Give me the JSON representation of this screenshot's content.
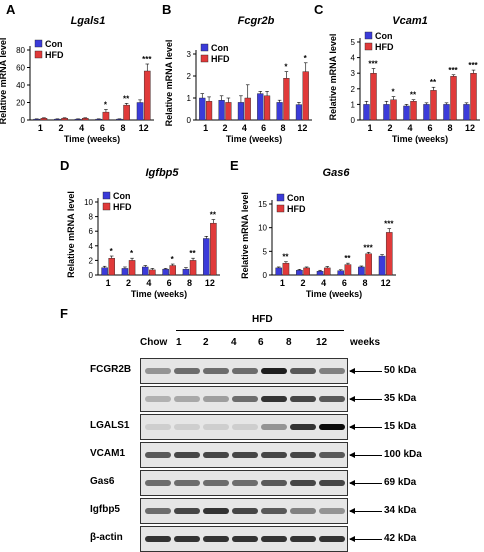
{
  "colors": {
    "con": "#3b3bd9",
    "hfd": "#e03a3a"
  },
  "panel_labels": [
    "A",
    "B",
    "C",
    "D",
    "E",
    "F"
  ],
  "chart_data": [
    {
      "id": "A",
      "type": "bar",
      "title": "Lgals1",
      "xlabel": "Time (weeks)",
      "ylabel": "Relative mRNA level",
      "categories": [
        "1",
        "2",
        "4",
        "6",
        "8",
        "12"
      ],
      "ylim": [
        0,
        80
      ],
      "yticks": [
        0,
        20,
        40,
        60,
        80
      ],
      "legend": "top-left",
      "series": [
        {
          "name": "Con",
          "values": [
            1,
            1,
            1,
            1,
            1,
            20
          ],
          "errors": [
            0.3,
            0.3,
            0.3,
            0.3,
            0.3,
            3
          ]
        },
        {
          "name": "HFD",
          "values": [
            2,
            2,
            2,
            9,
            17,
            56
          ],
          "errors": [
            0.5,
            0.5,
            0.5,
            3,
            2,
            8
          ]
        }
      ],
      "significance": [
        "",
        "",
        "",
        "*",
        "**",
        "***"
      ]
    },
    {
      "id": "B",
      "type": "bar",
      "title": "Fcgr2b",
      "xlabel": "Time (weeks)",
      "ylabel": "Relative mRNA level",
      "categories": [
        "1",
        "2",
        "4",
        "6",
        "8",
        "12"
      ],
      "ylim": [
        0,
        3
      ],
      "yticks": [
        0,
        1,
        2,
        3
      ],
      "legend": "top-left",
      "series": [
        {
          "name": "Con",
          "values": [
            1.0,
            0.9,
            0.8,
            1.2,
            0.8,
            0.7
          ],
          "errors": [
            0.2,
            0.2,
            0.3,
            0.1,
            0.1,
            0.1
          ]
        },
        {
          "name": "HFD",
          "values": [
            0.85,
            0.8,
            1.0,
            1.1,
            1.9,
            2.2
          ],
          "errors": [
            0.2,
            0.2,
            0.6,
            0.2,
            0.3,
            0.4
          ]
        }
      ],
      "significance": [
        "",
        "",
        "",
        "",
        "*",
        "*"
      ]
    },
    {
      "id": "C",
      "type": "bar",
      "title": "Vcam1",
      "xlabel": "Time (weeks)",
      "ylabel": "Relative mRNA level",
      "categories": [
        "1",
        "2",
        "4",
        "6",
        "8",
        "12"
      ],
      "ylim": [
        0,
        5
      ],
      "yticks": [
        0,
        1,
        2,
        3,
        4,
        5
      ],
      "legend": "top-left",
      "series": [
        {
          "name": "Con",
          "values": [
            1,
            1,
            0.9,
            1,
            1,
            1
          ],
          "errors": [
            0.2,
            0.2,
            0.1,
            0.1,
            0.1,
            0.1
          ]
        },
        {
          "name": "HFD",
          "values": [
            3,
            1.3,
            1.2,
            1.9,
            2.8,
            3
          ],
          "errors": [
            0.3,
            0.2,
            0.1,
            0.2,
            0.1,
            0.2
          ]
        }
      ],
      "significance": [
        "***",
        "*",
        "**",
        "**",
        "***",
        "***"
      ]
    },
    {
      "id": "D",
      "type": "bar",
      "title": "Igfbp5",
      "xlabel": "Time (weeks)",
      "ylabel": "Relative mRNA level",
      "categories": [
        "1",
        "2",
        "4",
        "6",
        "8",
        "12"
      ],
      "ylim": [
        0,
        10
      ],
      "yticks": [
        0,
        2,
        4,
        6,
        8,
        10
      ],
      "legend": "top-left",
      "series": [
        {
          "name": "Con",
          "values": [
            1,
            0.9,
            1.1,
            0.8,
            0.8,
            5
          ],
          "errors": [
            0.2,
            0.2,
            0.2,
            0.1,
            0.2,
            0.3
          ]
        },
        {
          "name": "HFD",
          "values": [
            2.3,
            2,
            0.7,
            1.3,
            2,
            7.1
          ],
          "errors": [
            0.3,
            0.3,
            0.2,
            0.2,
            0.3,
            0.5
          ]
        }
      ],
      "significance": [
        "*",
        "*",
        "",
        "*",
        "**",
        "**"
      ]
    },
    {
      "id": "E",
      "type": "bar",
      "title": "Gas6",
      "xlabel": "Time (weeks)",
      "ylabel": "Relative mRNA level",
      "categories": [
        "1",
        "2",
        "4",
        "6",
        "8",
        "12"
      ],
      "ylim": [
        0,
        15
      ],
      "yticks": [
        0,
        5,
        10,
        15
      ],
      "legend": "top-left",
      "series": [
        {
          "name": "Con",
          "values": [
            1.5,
            1,
            0.8,
            0.9,
            1.7,
            4
          ],
          "errors": [
            0.2,
            0.2,
            0.2,
            0.2,
            0.2,
            0.3
          ]
        },
        {
          "name": "HFD",
          "values": [
            2.5,
            1.5,
            1.5,
            2.2,
            4.5,
            9
          ],
          "errors": [
            0.3,
            0.2,
            0.3,
            0.3,
            0.3,
            0.8
          ]
        }
      ],
      "significance": [
        "**",
        "",
        "",
        "**",
        "***",
        "***"
      ]
    }
  ],
  "blot": {
    "group_label": "HFD",
    "lanes": [
      "Chow",
      "1",
      "2",
      "4",
      "6",
      "8",
      "12"
    ],
    "lane_unit": "weeks",
    "rows": [
      {
        "label": "FCGR2B",
        "kda": "50 kDa",
        "bands": [
          0.3,
          0.5,
          0.5,
          0.5,
          0.9,
          0.6,
          0.4
        ]
      },
      {
        "label": "",
        "kda": "35 kDa",
        "bands": [
          0.15,
          0.2,
          0.25,
          0.5,
          0.8,
          0.7,
          0.6
        ]
      },
      {
        "label": "LGALS1",
        "kda": "15 kDa",
        "bands": [
          0,
          0,
          0,
          0,
          0.3,
          0.8,
          1.0
        ]
      },
      {
        "label": "VCAM1",
        "kda": "100 kDa",
        "bands": [
          0.6,
          0.7,
          0.7,
          0.7,
          0.7,
          0.7,
          0.6
        ]
      },
      {
        "label": "Gas6",
        "kda": "69 kDa",
        "bands": [
          0.5,
          0.5,
          0.5,
          0.5,
          0.6,
          0.7,
          0.7
        ]
      },
      {
        "label": "Igfbp5",
        "kda": "34 kDa",
        "bands": [
          0.5,
          0.7,
          0.8,
          0.7,
          0.6,
          0.4,
          0.3
        ]
      },
      {
        "label": "β-actin",
        "kda": "42 kDa",
        "bands": [
          0.8,
          0.8,
          0.8,
          0.8,
          0.8,
          0.8,
          0.8
        ]
      }
    ]
  }
}
